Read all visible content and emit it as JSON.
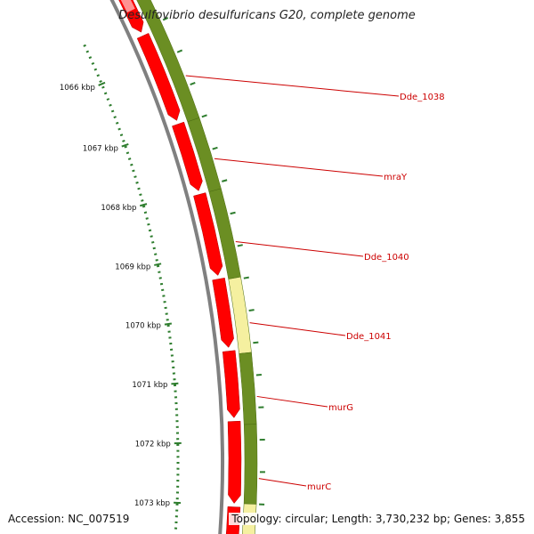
{
  "title": "Desulfovibrio desulfuricans G20, complete genome",
  "accession_label": "Accession: NC_007519",
  "topology_label": "Topology: circular; Length: 3,730,232 bp; Genes: 3,855",
  "colors": {
    "cds_forward": "#ff0000",
    "cds_green": "#6b8e23",
    "highlight": "#f5f0a0",
    "backbone": "#808080",
    "tick": "#2e7d2e",
    "gene_label": "#cc0000"
  },
  "scale": {
    "unit": "kbp",
    "major_ticks": [
      "1066 kbp",
      "1067 kbp",
      "1068 kbp",
      "1069 kbp",
      "1070 kbp",
      "1071 kbp",
      "1072 kbp",
      "1073 kbp"
    ]
  },
  "genes": [
    {
      "name": "Dde_1038"
    },
    {
      "name": "mraY"
    },
    {
      "name": "Dde_1040"
    },
    {
      "name": "Dde_1041"
    },
    {
      "name": "murG"
    },
    {
      "name": "murC"
    }
  ]
}
